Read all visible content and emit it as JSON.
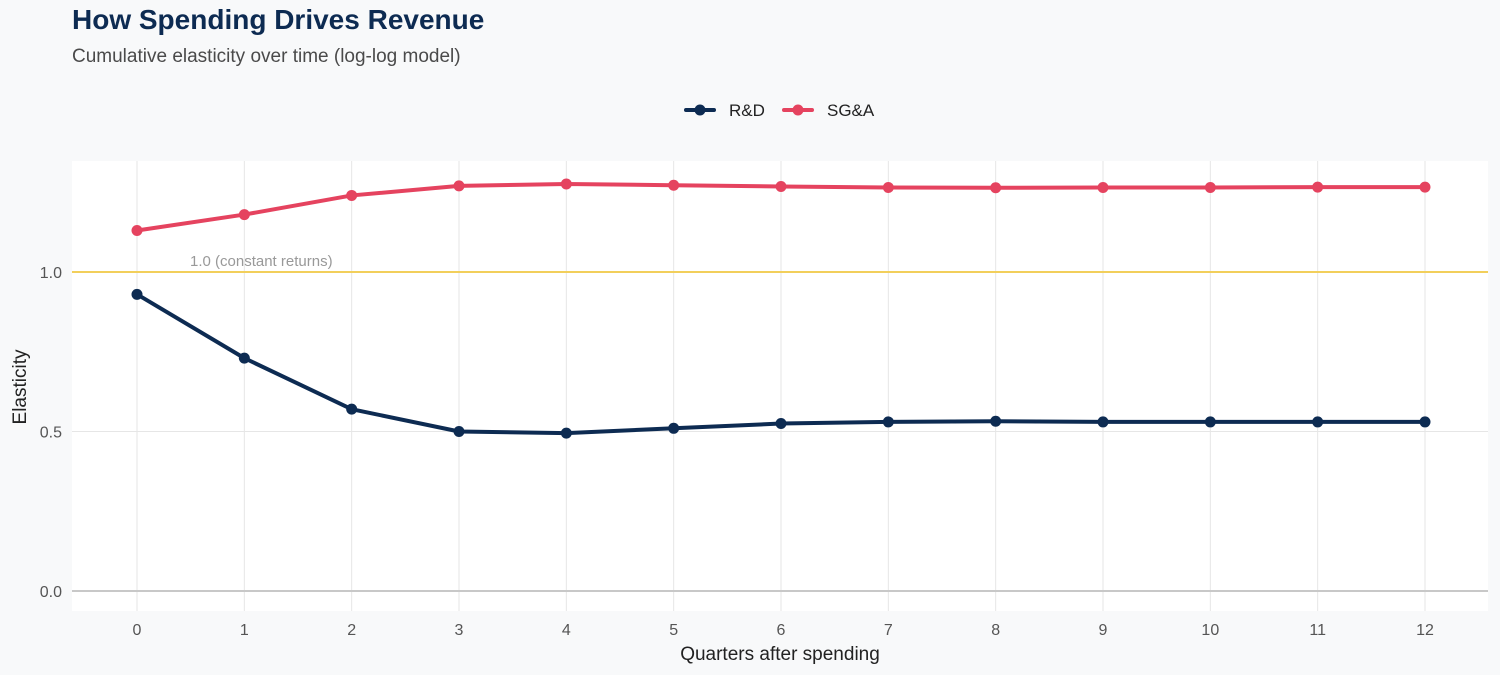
{
  "chart_data": {
    "type": "line",
    "title": "How Spending Drives Revenue",
    "subtitle": "Cumulative elasticity over time (log-log model)",
    "xlabel": "Quarters after spending",
    "ylabel": "Elasticity",
    "x": [
      0,
      1,
      2,
      3,
      4,
      5,
      6,
      7,
      8,
      9,
      10,
      11,
      12
    ],
    "ylim": [
      0,
      1.3
    ],
    "y_ticks": [
      0.0,
      0.5,
      1.0
    ],
    "y_tick_labels": [
      "0.0",
      "0.5",
      "1.0"
    ],
    "grid": true,
    "legend_position": "top-center",
    "series": [
      {
        "name": "R&D",
        "color": "#0d2b52",
        "values": [
          0.93,
          0.73,
          0.57,
          0.5,
          0.495,
          0.51,
          0.525,
          0.53,
          0.532,
          0.53,
          0.53,
          0.53,
          0.53
        ]
      },
      {
        "name": "SG&A",
        "color": "#e5435f",
        "values": [
          1.13,
          1.18,
          1.24,
          1.27,
          1.276,
          1.272,
          1.268,
          1.265,
          1.264,
          1.265,
          1.265,
          1.266,
          1.266
        ]
      }
    ],
    "reference_line": {
      "value": 1.0,
      "label": "1.0 (constant returns)",
      "color": "#f2cf5b"
    }
  }
}
